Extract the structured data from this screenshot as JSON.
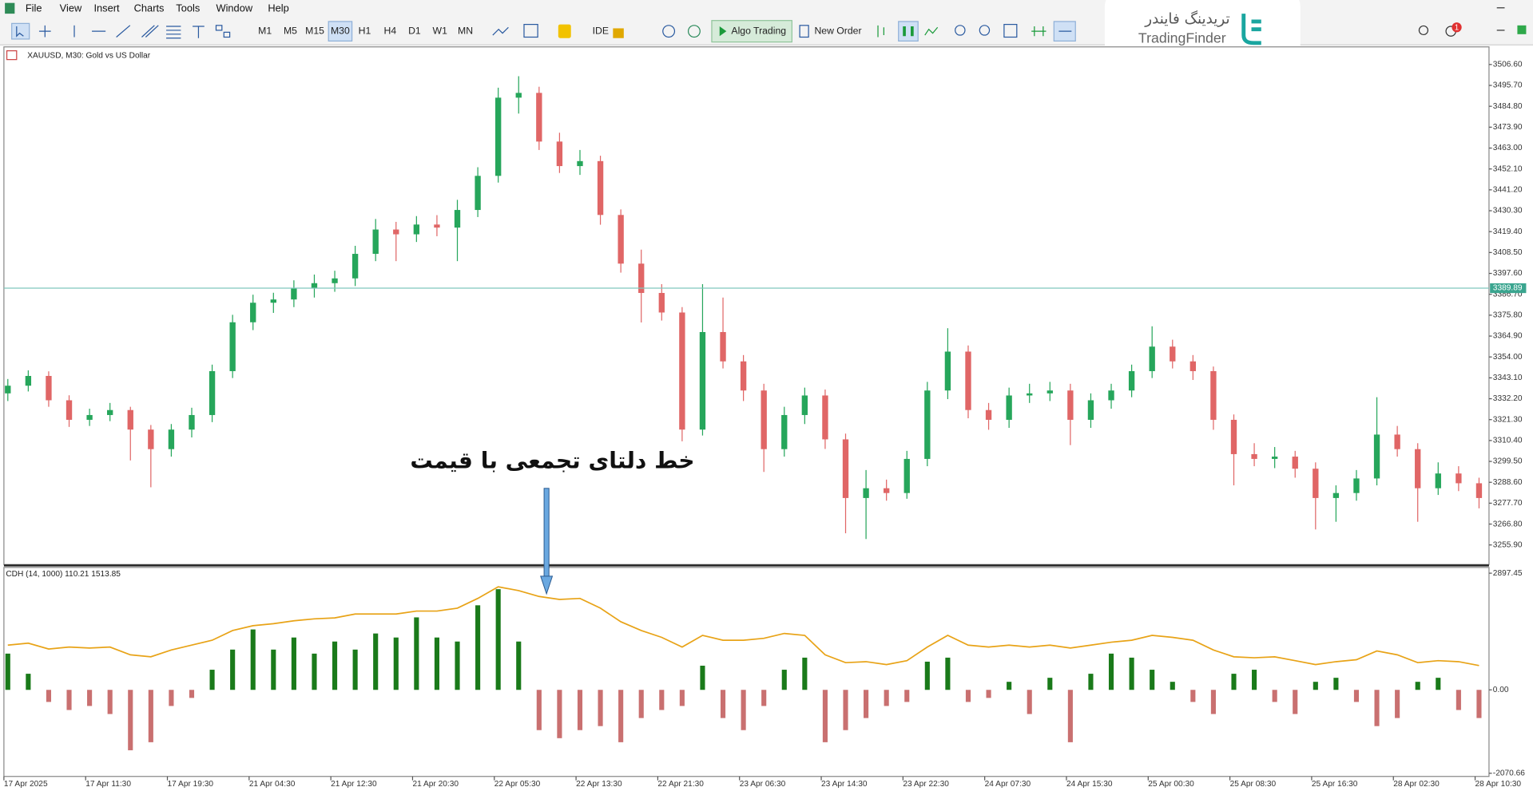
{
  "menu": [
    "File",
    "View",
    "Insert",
    "Charts",
    "Tools",
    "Window",
    "Help"
  ],
  "timeframes": [
    "M1",
    "M5",
    "M15",
    "M30",
    "H1",
    "H4",
    "D1",
    "W1",
    "MN"
  ],
  "toolbar": {
    "ide": "IDE",
    "algo": "Algo Trading",
    "order": "New Order"
  },
  "logo": {
    "fa": "تریدینگ فایندر",
    "en": "TradingFinder"
  },
  "notification_count": 1,
  "annotation": "خط دلتای تجمعی با قیمت",
  "chart_data": [
    {
      "type": "candlestick",
      "title": "XAUUSD, M30:  Gold vs US Dollar",
      "up_color": "#26a65b",
      "down_color": "#e06666",
      "ylim": [
        3245.7,
        3515.8
      ],
      "yticks": [
        {
          "value": 3506.6,
          "label": "3506.60"
        },
        {
          "value": 3495.7,
          "label": "3495.70"
        },
        {
          "value": 3484.8,
          "label": "3484.80"
        },
        {
          "value": 3473.9,
          "label": "3473.90"
        },
        {
          "value": 3463,
          "label": "3463.00"
        },
        {
          "value": 3452.1,
          "label": "3452.10"
        },
        {
          "value": 3441.2,
          "label": "3441.20"
        },
        {
          "value": 3430.3,
          "label": "3430.30"
        },
        {
          "value": 3419.4,
          "label": "3419.40"
        },
        {
          "value": 3408.5,
          "label": "3408.50"
        },
        {
          "value": 3397.6,
          "label": "3397.60"
        },
        {
          "value": 3386.7,
          "label": "3386.70"
        },
        {
          "value": 3375.8,
          "label": "3375.80"
        },
        {
          "value": 3364.9,
          "label": "3364.90"
        },
        {
          "value": 3354,
          "label": "3354.00"
        },
        {
          "value": 3343.1,
          "label": "3343.10"
        },
        {
          "value": 3332.2,
          "label": "3332.20"
        },
        {
          "value": 3321.3,
          "label": "3321.30"
        },
        {
          "value": 3310.4,
          "label": "3310.40"
        },
        {
          "value": 3299.5,
          "label": "3299.50"
        },
        {
          "value": 3288.6,
          "label": "3288.60"
        },
        {
          "value": 3277.7,
          "label": "3277.70"
        },
        {
          "value": 3266.8,
          "label": "3266.80"
        },
        {
          "value": 3255.9,
          "label": "3255.90"
        }
      ],
      "price_line": 3389.89,
      "price_line_color": "#7fc7bd",
      "ohlc": [
        [
          3335.0,
          3342.5,
          3331.0,
          3339.0
        ],
        [
          3339.0,
          3347.0,
          3336.0,
          3344.1
        ],
        [
          3344.1,
          3346.5,
          3328.0,
          3331.4
        ],
        [
          3331.4,
          3334.0,
          3317.5,
          3321.2
        ],
        [
          3321.2,
          3327.0,
          3318.0,
          3323.7
        ],
        [
          3323.7,
          3330.0,
          3320.5,
          3326.3
        ],
        [
          3326.3,
          3328.0,
          3300.0,
          3316.1
        ],
        [
          3316.1,
          3318.5,
          3286.0,
          3305.9
        ],
        [
          3305.9,
          3319.0,
          3302.0,
          3316.1
        ],
        [
          3316.1,
          3327.5,
          3312.0,
          3323.7
        ],
        [
          3323.7,
          3350.0,
          3320.0,
          3346.6
        ],
        [
          3346.6,
          3376.0,
          3343.0,
          3372.1
        ],
        [
          3372.1,
          3386.5,
          3368.0,
          3382.3
        ],
        [
          3382.3,
          3387.5,
          3377.0,
          3384.0
        ],
        [
          3384.0,
          3394.0,
          3380.0,
          3389.9
        ],
        [
          3389.9,
          3397.0,
          3385.0,
          3392.5
        ],
        [
          3392.5,
          3399.0,
          3388.0,
          3395.0
        ],
        [
          3395.0,
          3412.0,
          3391.0,
          3407.8
        ],
        [
          3407.8,
          3426.0,
          3404.0,
          3420.5
        ],
        [
          3420.5,
          3424.5,
          3404.0,
          3418.0
        ],
        [
          3418.0,
          3427.5,
          3414.0,
          3423.1
        ],
        [
          3423.1,
          3428.0,
          3417.0,
          3421.5
        ],
        [
          3421.5,
          3436.0,
          3404.0,
          3430.7
        ],
        [
          3430.7,
          3453.0,
          3427.0,
          3448.5
        ],
        [
          3448.5,
          3494.5,
          3445.0,
          3489.3
        ],
        [
          3489.3,
          3500.5,
          3481.0,
          3491.8
        ],
        [
          3491.8,
          3495.0,
          3462.0,
          3466.4
        ],
        [
          3466.4,
          3471.0,
          3450.0,
          3453.6
        ],
        [
          3453.6,
          3462.0,
          3449.0,
          3456.2
        ],
        [
          3456.2,
          3459.0,
          3423.0,
          3428.1
        ],
        [
          3428.1,
          3431.0,
          3398.0,
          3402.7
        ],
        [
          3402.7,
          3410.0,
          3372.0,
          3387.4
        ],
        [
          3387.4,
          3392.0,
          3373.0,
          3377.2
        ],
        [
          3377.2,
          3380.0,
          3310.0,
          3316.1
        ],
        [
          3316.1,
          3392.0,
          3313.0,
          3367.0
        ],
        [
          3367.0,
          3385.0,
          3348.0,
          3351.7
        ],
        [
          3351.7,
          3355.0,
          3331.0,
          3336.5
        ],
        [
          3336.5,
          3340.0,
          3294.0,
          3305.9
        ],
        [
          3305.9,
          3328.0,
          3302.0,
          3323.7
        ],
        [
          3323.7,
          3338.0,
          3319.0,
          3333.9
        ],
        [
          3333.9,
          3337.0,
          3306.0,
          3311.0
        ],
        [
          3311.0,
          3314.0,
          3262.0,
          3280.4
        ],
        [
          3280.4,
          3295.0,
          3259.0,
          3285.5
        ],
        [
          3285.5,
          3290.0,
          3279.0,
          3283.0
        ],
        [
          3283.0,
          3305.0,
          3280.0,
          3300.8
        ],
        [
          3300.8,
          3341.0,
          3297.0,
          3336.5
        ],
        [
          3336.5,
          3369.0,
          3332.0,
          3356.8
        ],
        [
          3356.8,
          3360.0,
          3322.0,
          3326.3
        ],
        [
          3326.3,
          3330.0,
          3316.0,
          3321.2
        ],
        [
          3321.2,
          3338.0,
          3317.0,
          3333.9
        ],
        [
          3333.9,
          3340.0,
          3330.0,
          3335.0
        ],
        [
          3335.0,
          3341.0,
          3331.0,
          3336.5
        ],
        [
          3336.5,
          3340.0,
          3308.0,
          3321.2
        ],
        [
          3321.2,
          3335.0,
          3317.0,
          3331.4
        ],
        [
          3331.4,
          3340.0,
          3327.0,
          3336.5
        ],
        [
          3336.5,
          3350.0,
          3333.0,
          3346.6
        ],
        [
          3346.6,
          3370.0,
          3343.0,
          3359.4
        ],
        [
          3359.4,
          3363.0,
          3348.0,
          3351.7
        ],
        [
          3351.7,
          3355.0,
          3342.0,
          3346.6
        ],
        [
          3346.6,
          3349.0,
          3316.0,
          3321.2
        ],
        [
          3321.2,
          3324.0,
          3287.0,
          3303.3
        ],
        [
          3303.3,
          3309.0,
          3297.0,
          3300.8
        ],
        [
          3300.8,
          3307.0,
          3296.0,
          3302.0
        ],
        [
          3302.0,
          3305.0,
          3291.0,
          3295.7
        ],
        [
          3295.7,
          3299.0,
          3264.0,
          3280.4
        ],
        [
          3280.4,
          3287.0,
          3268.0,
          3283.0
        ],
        [
          3283.0,
          3295.0,
          3279.0,
          3290.6
        ],
        [
          3290.6,
          3333.0,
          3287.0,
          3313.5
        ],
        [
          3313.5,
          3318.0,
          3302.0,
          3305.9
        ],
        [
          3305.9,
          3309.0,
          3268.0,
          3285.5
        ],
        [
          3285.5,
          3299.0,
          3282.0,
          3293.2
        ],
        [
          3293.2,
          3297.0,
          3284.0,
          3288.1
        ],
        [
          3288.1,
          3291.0,
          3275.0,
          3280.4
        ]
      ]
    },
    {
      "type": "bar",
      "title": "CDH (14, 1000) 110.21 1513.85",
      "ylim": [
        -2150,
        3040
      ],
      "yticks": [
        2897.45,
        {
          "value": 0,
          "label": "0.00"
        },
        -2070.66
      ],
      "categories": [
        "17 Apr 2025",
        null,
        null,
        null,
        "17 Apr 11:30",
        null,
        null,
        null,
        "17 Apr 19:30",
        null,
        null,
        null,
        "21 Apr 04:30",
        null,
        null,
        null,
        "21 Apr 12:30",
        null,
        null,
        null,
        "21 Apr 20:30",
        null,
        null,
        null,
        "22 Apr 05:30",
        null,
        null,
        null,
        "22 Apr 13:30",
        null,
        null,
        null,
        "22 Apr 21:30",
        null,
        null,
        null,
        "23 Apr 06:30",
        null,
        null,
        null,
        "23 Apr 14:30",
        null,
        null,
        null,
        "23 Apr 22:30",
        null,
        null,
        null,
        "24 Apr 07:30",
        null,
        null,
        null,
        "24 Apr 15:30",
        null,
        null,
        null,
        "25 Apr 00:30",
        null,
        null,
        null,
        "25 Apr 08:30",
        null,
        null,
        null,
        "25 Apr 16:30",
        null,
        null,
        null,
        "28 Apr 02:30",
        null,
        null,
        null,
        "28 Apr 10:30"
      ],
      "series": [
        {
          "type": "bar",
          "up_color": "#1a7a1a",
          "down_color": "#c97070",
          "values": [
            900,
            400,
            -300,
            -500,
            -400,
            -600,
            -1500,
            -1300,
            -400,
            -200,
            500,
            1000,
            1500,
            1000,
            1300,
            900,
            1200,
            1000,
            1400,
            1300,
            1800,
            1300,
            1200,
            2100,
            2500,
            1200,
            -1000,
            -1200,
            -1000,
            -900,
            -1300,
            -700,
            -500,
            -400,
            600,
            -700,
            -1000,
            -400,
            500,
            800,
            -1300,
            -1000,
            -700,
            -400,
            -300,
            700,
            800,
            -300,
            -200,
            200,
            -600,
            300,
            -1300,
            400,
            900,
            800,
            500,
            200,
            -300,
            -600,
            400,
            500,
            -300,
            -600,
            200,
            300,
            -300,
            -900,
            -700,
            200,
            300,
            -500,
            -700
          ]
        },
        {
          "type": "line",
          "color": "#e8a317",
          "values": [
            1111,
            1159,
            1014,
            1063,
            1039,
            1063,
            870,
            821,
            990,
            1111,
            1232,
            1473,
            1594,
            1643,
            1715,
            1763,
            1787,
            1884,
            1884,
            1884,
            1957,
            1957,
            2029,
            2271,
            2560,
            2464,
            2319,
            2246,
            2271,
            2029,
            1691,
            1473,
            1304,
            1063,
            1353,
            1232,
            1232,
            1280,
            1401,
            1353,
            870,
            676,
            700,
            628,
            725,
            1063,
            1353,
            1111,
            1063,
            1111,
            1063,
            1111,
            1039,
            1111,
            1184,
            1232,
            1353,
            1304,
            1232,
            990,
            821,
            797,
            821,
            725,
            628,
            700,
            749,
            966,
            870,
            676,
            725,
            700,
            604
          ]
        }
      ]
    }
  ]
}
